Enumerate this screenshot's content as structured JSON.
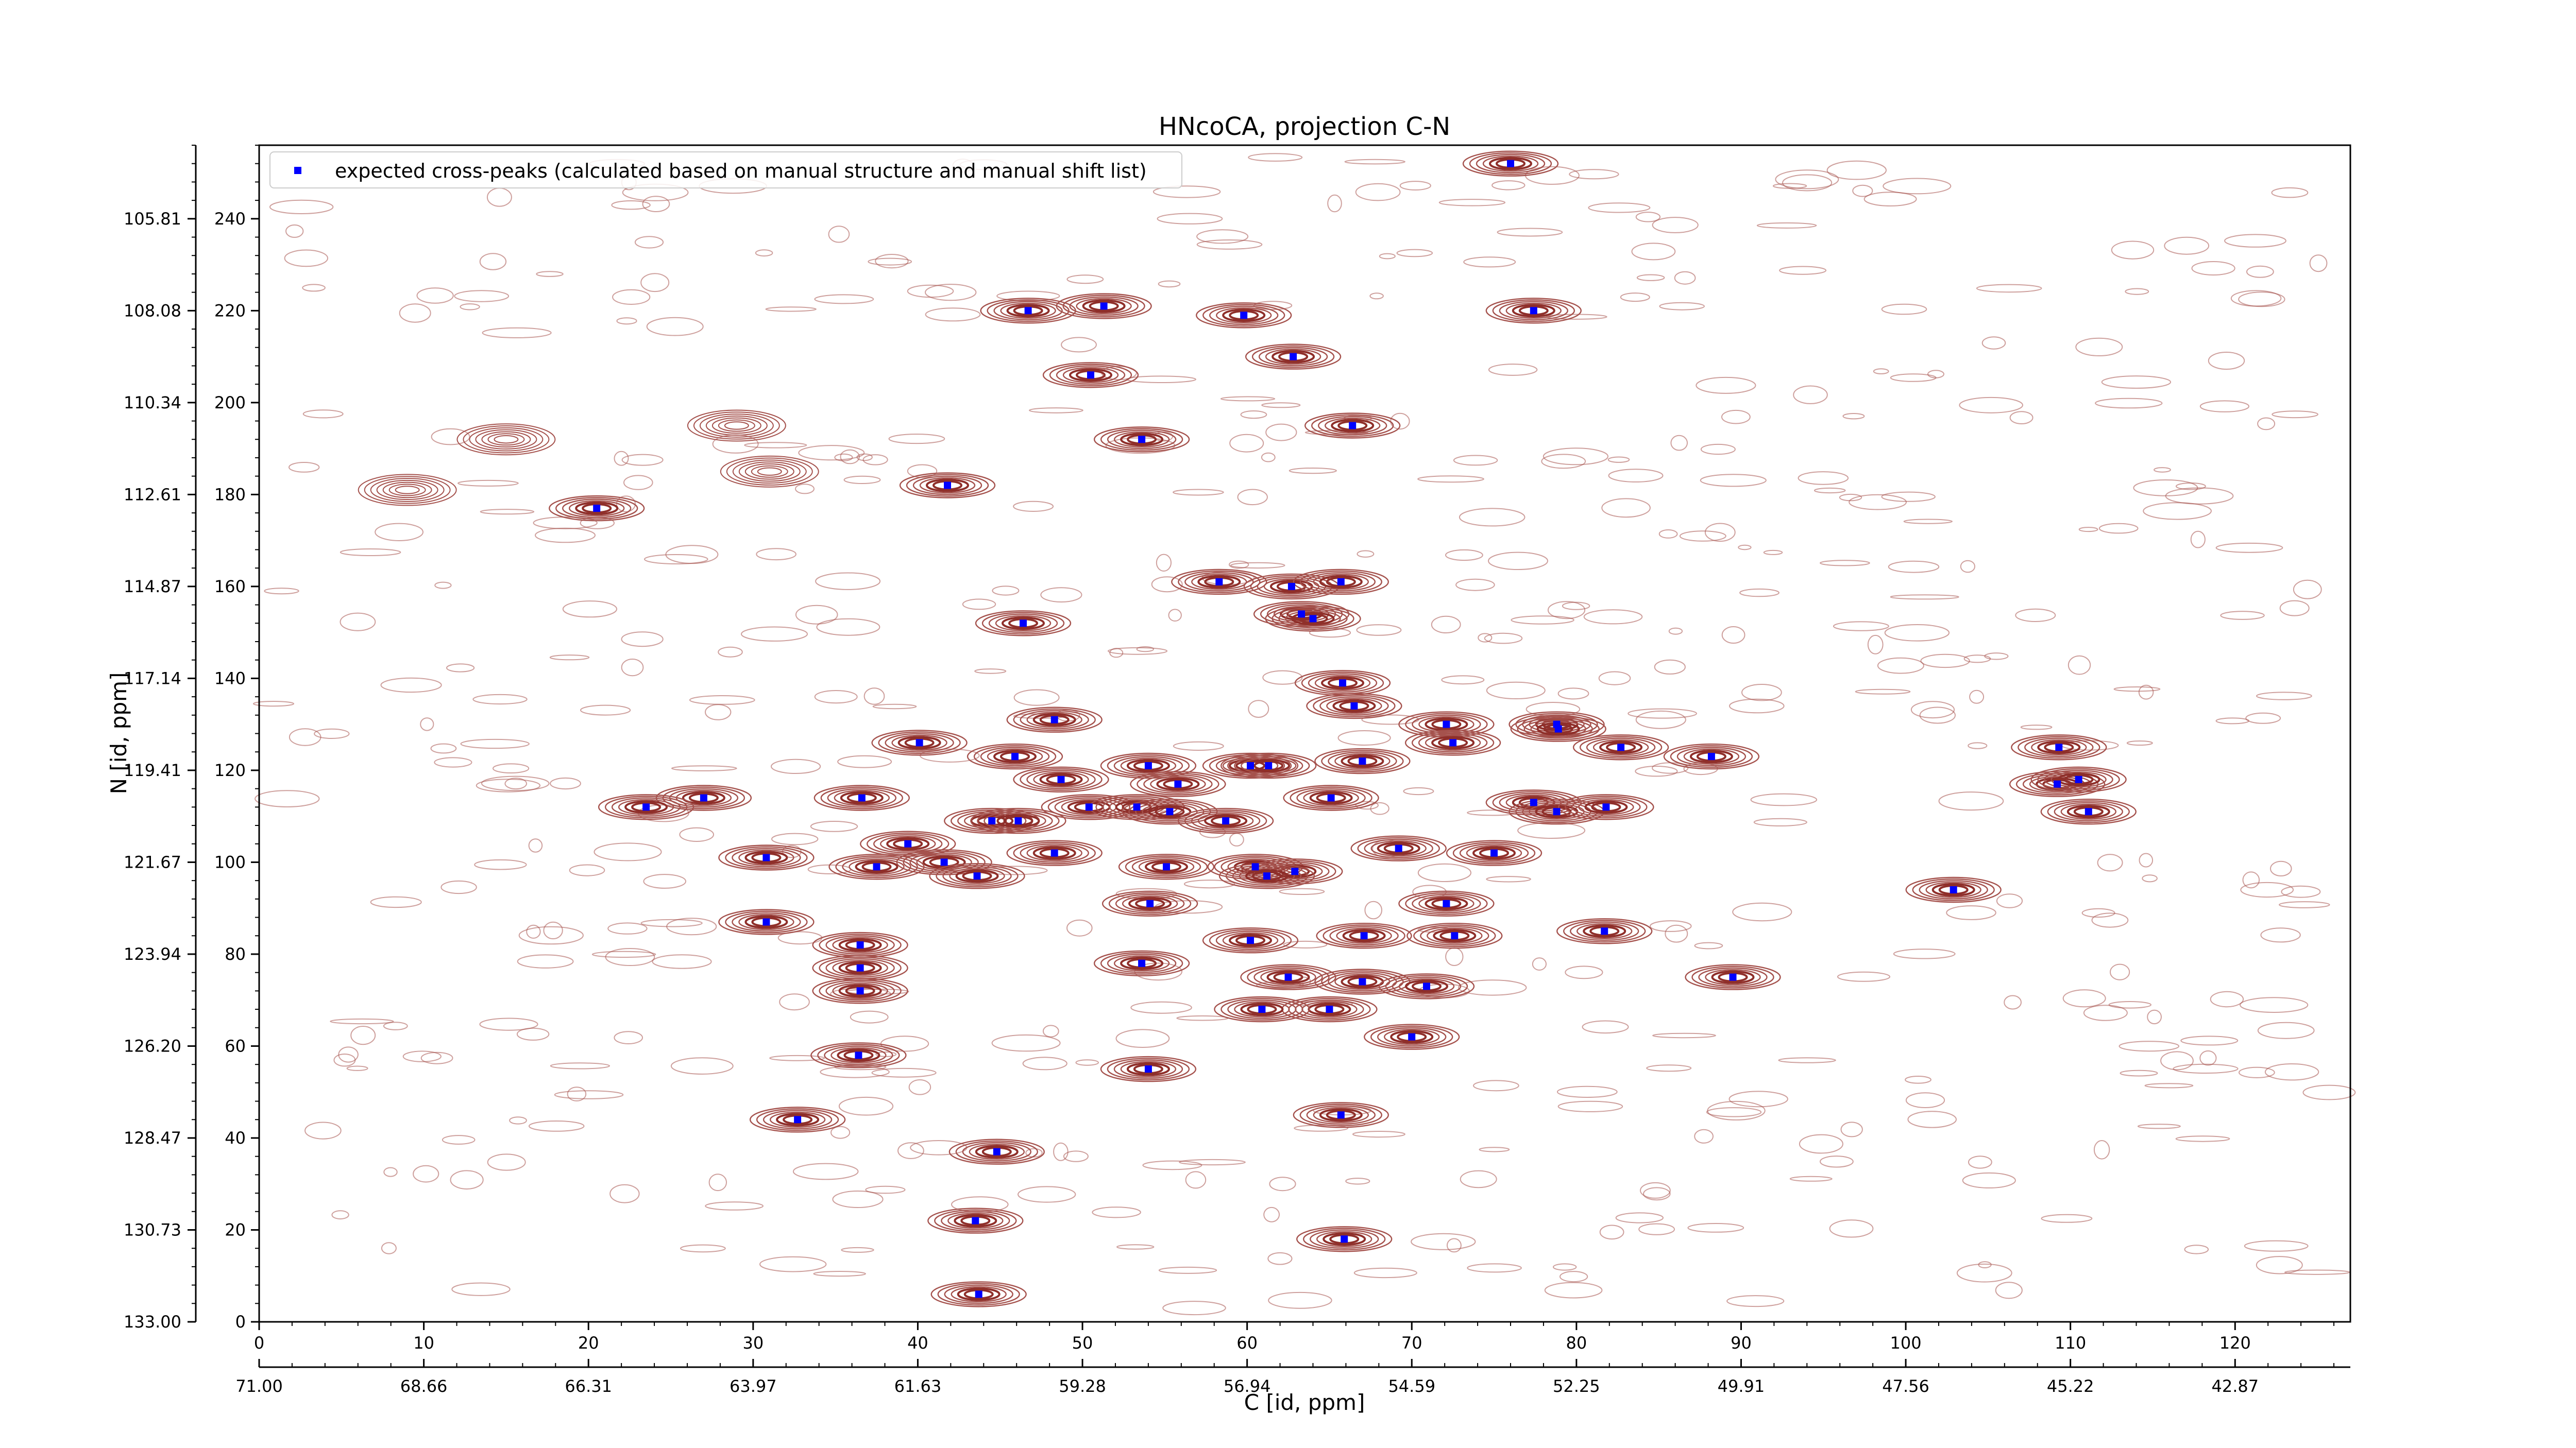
{
  "chart_data": {
    "type": "scatter",
    "title": "HNcoCA, projection C-N",
    "xlabel": "C [id, ppm]",
    "ylabel": "N [id, ppm]",
    "xlim": [
      0,
      127
    ],
    "ylim": [
      0,
      256
    ],
    "grid": false,
    "legend_position": "top-left",
    "x_ticks": [
      "0",
      "10",
      "20",
      "30",
      "40",
      "50",
      "60",
      "70",
      "80",
      "90",
      "100",
      "110",
      "120"
    ],
    "x_tick_values": [
      0,
      10,
      20,
      30,
      40,
      50,
      60,
      70,
      80,
      90,
      100,
      110,
      120
    ],
    "x_ppm_ticks": [
      "71.00",
      "68.66",
      "66.31",
      "63.97",
      "61.63",
      "59.28",
      "56.94",
      "54.59",
      "52.25",
      "49.91",
      "47.56",
      "45.22",
      "42.87"
    ],
    "y_ticks": [
      "0",
      "20",
      "40",
      "60",
      "80",
      "100",
      "120",
      "140",
      "160",
      "180",
      "200",
      "220",
      "240"
    ],
    "y_tick_values": [
      0,
      20,
      40,
      60,
      80,
      100,
      120,
      140,
      160,
      180,
      200,
      220,
      240
    ],
    "y_ppm_ticks": [
      "133.00",
      "130.73",
      "128.47",
      "126.20",
      "123.94",
      "121.67",
      "119.41",
      "117.14",
      "114.87",
      "112.61",
      "110.34",
      "108.08",
      "105.81"
    ],
    "series": [
      {
        "name": "expected cross-peaks (calculated based on manual structure and manual shift list)",
        "marker": "square",
        "color": "#0000ff",
        "points": [
          [
            76.0,
            252
          ],
          [
            46.7,
            220
          ],
          [
            51.3,
            221
          ],
          [
            59.8,
            219
          ],
          [
            77.4,
            220
          ],
          [
            50.5,
            206
          ],
          [
            62.8,
            210
          ],
          [
            53.6,
            192
          ],
          [
            66.4,
            195
          ],
          [
            41.8,
            182
          ],
          [
            20.5,
            177
          ],
          [
            58.3,
            161
          ],
          [
            62.7,
            160
          ],
          [
            65.7,
            161
          ],
          [
            63.3,
            154
          ],
          [
            64.0,
            153
          ],
          [
            46.4,
            152
          ],
          [
            65.8,
            139
          ],
          [
            66.5,
            134
          ],
          [
            48.3,
            131
          ],
          [
            72.1,
            130
          ],
          [
            78.8,
            130
          ],
          [
            78.9,
            129
          ],
          [
            40.1,
            126
          ],
          [
            72.5,
            126
          ],
          [
            82.7,
            125
          ],
          [
            109.3,
            125
          ],
          [
            45.9,
            123
          ],
          [
            88.2,
            123
          ],
          [
            54.0,
            121
          ],
          [
            60.2,
            121
          ],
          [
            61.3,
            121
          ],
          [
            67.0,
            122
          ],
          [
            48.7,
            118
          ],
          [
            109.2,
            117
          ],
          [
            110.5,
            118
          ],
          [
            55.8,
            117
          ],
          [
            36.6,
            114
          ],
          [
            27.0,
            114
          ],
          [
            23.5,
            112
          ],
          [
            50.4,
            112
          ],
          [
            53.3,
            112
          ],
          [
            55.3,
            111
          ],
          [
            77.4,
            113
          ],
          [
            78.8,
            111
          ],
          [
            81.8,
            112
          ],
          [
            111.1,
            111
          ],
          [
            44.5,
            109
          ],
          [
            46.1,
            109
          ],
          [
            58.7,
            109
          ],
          [
            65.1,
            114
          ],
          [
            39.4,
            104
          ],
          [
            48.3,
            102
          ],
          [
            69.2,
            103
          ],
          [
            75.0,
            102
          ],
          [
            30.8,
            101
          ],
          [
            41.6,
            100
          ],
          [
            43.6,
            97
          ],
          [
            37.5,
            99
          ],
          [
            55.1,
            99
          ],
          [
            60.5,
            99
          ],
          [
            62.9,
            98
          ],
          [
            61.2,
            97
          ],
          [
            54.1,
            91
          ],
          [
            72.1,
            91
          ],
          [
            30.8,
            87
          ],
          [
            36.5,
            82
          ],
          [
            36.5,
            77
          ],
          [
            36.5,
            72
          ],
          [
            67.1,
            84
          ],
          [
            72.6,
            84
          ],
          [
            60.2,
            83
          ],
          [
            81.7,
            85
          ],
          [
            53.6,
            78
          ],
          [
            62.5,
            75
          ],
          [
            67.0,
            74
          ],
          [
            70.9,
            73
          ],
          [
            89.5,
            75
          ],
          [
            102.9,
            94
          ],
          [
            65.0,
            68
          ],
          [
            60.9,
            68
          ],
          [
            70.0,
            62
          ],
          [
            36.4,
            58
          ],
          [
            54.0,
            55
          ],
          [
            32.7,
            44
          ],
          [
            65.7,
            45
          ],
          [
            44.8,
            37
          ],
          [
            43.5,
            22
          ],
          [
            65.9,
            18
          ],
          [
            43.7,
            6
          ]
        ]
      }
    ]
  }
}
